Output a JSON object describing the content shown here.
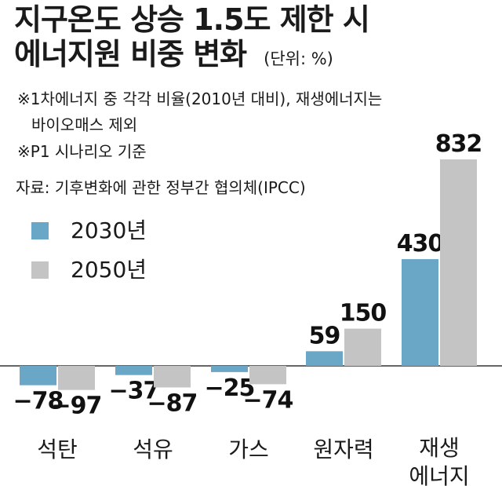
{
  "header": {
    "title_line1": "지구온도 상승 1.5도 제한 시",
    "title_line2": "에너지원 비중 변화",
    "unit": "(단위: %)"
  },
  "notes": {
    "note1": "※1차에너지 중 각각 비율(2010년 대비), 재생에너지는",
    "note1_cont": "바이오매스 제외",
    "note2": "※P1 시나리오 기준",
    "source": "자료: 기후변화에 관한 정부간 협의체(IPCC)"
  },
  "colors": {
    "series_2030": "#6aa6c6",
    "series_2050": "#c4c4c4",
    "baseline": "#333333"
  },
  "chart_data": {
    "type": "bar",
    "title": "지구온도 상승 1.5도 제한 시 에너지원 비중 변화",
    "unit": "(단위: %)",
    "categories": [
      "석탄",
      "석유",
      "가스",
      "원자력",
      "재생\n에너지"
    ],
    "series": [
      {
        "name": "2030년",
        "values": [
          -78,
          -37,
          -25,
          59,
          430
        ]
      },
      {
        "name": "2050년",
        "values": [
          -97,
          -87,
          -74,
          150,
          832
        ]
      }
    ],
    "value_labels": {
      "2030년": [
        "−78",
        "−37",
        "−25",
        "59",
        "430"
      ],
      "2050년": [
        "−97",
        "−87",
        "−74",
        "150",
        "832"
      ]
    },
    "legend_position": "left",
    "grid": false
  }
}
